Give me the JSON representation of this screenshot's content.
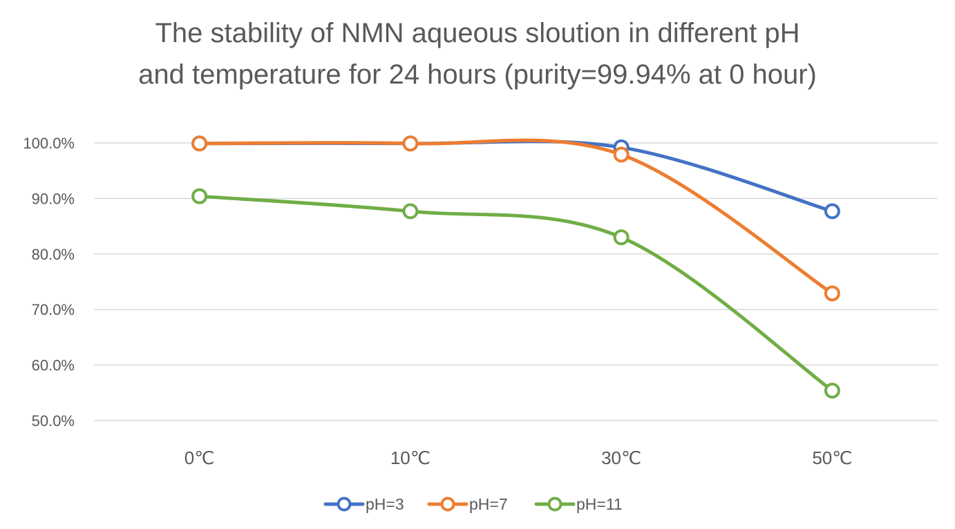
{
  "chart_data": {
    "type": "line",
    "title": "The stability of NMN aqueous sloution in different pH and temperature for 24 hours (purity=99.94% at 0 hour)",
    "title_lines": [
      "The stability of NMN aqueous sloution in different pH",
      "and temperature for 24 hours (purity=99.94% at 0 hour)"
    ],
    "categories": [
      "0℃",
      "10℃",
      "30℃",
      "50℃"
    ],
    "xlabel": "",
    "ylabel": "",
    "ylim": [
      50,
      100
    ],
    "yticks": [
      50,
      60,
      70,
      80,
      90,
      100
    ],
    "ytick_labels": [
      "50.0%",
      "60.0%",
      "70.0%",
      "80.0%",
      "90.0%",
      "100.0%"
    ],
    "grid": true,
    "smooth": true,
    "legend_position": "bottom",
    "series": [
      {
        "name": "pH=3",
        "color": "#4472C4",
        "values": [
          99.9,
          99.9,
          99.2,
          87.7
        ]
      },
      {
        "name": "pH=7",
        "color": "#ED7D31",
        "values": [
          99.9,
          99.9,
          97.9,
          72.9
        ]
      },
      {
        "name": "pH=11",
        "color": "#70AD47",
        "values": [
          90.4,
          87.7,
          83.0,
          55.4
        ]
      }
    ]
  }
}
